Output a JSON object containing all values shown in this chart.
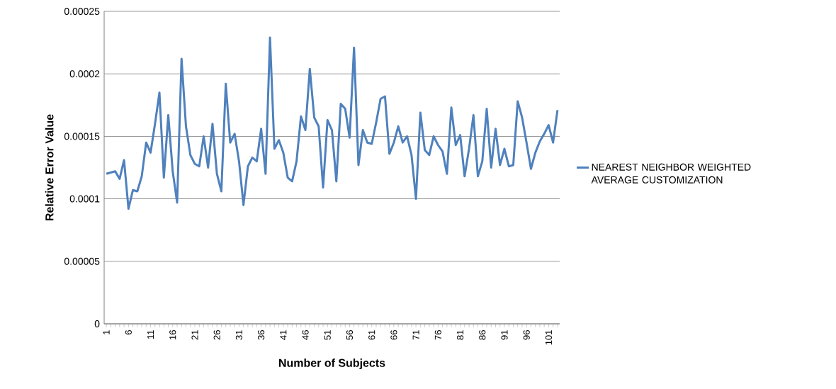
{
  "chart_data": {
    "type": "line",
    "xlabel": "Number of Subjects",
    "ylabel": "Relative Error Value",
    "categories": [
      "1",
      null,
      null,
      null,
      null,
      "6",
      null,
      null,
      null,
      null,
      "11",
      null,
      null,
      null,
      null,
      "16",
      null,
      null,
      null,
      null,
      "21",
      null,
      null,
      null,
      null,
      "26",
      null,
      null,
      null,
      null,
      "31",
      null,
      null,
      null,
      null,
      "36",
      null,
      null,
      null,
      null,
      "41",
      null,
      null,
      null,
      null,
      "46",
      null,
      null,
      null,
      null,
      "51",
      null,
      null,
      null,
      null,
      "56",
      null,
      null,
      null,
      null,
      "61",
      null,
      null,
      null,
      null,
      "66",
      null,
      null,
      null,
      null,
      "71",
      null,
      null,
      null,
      null,
      "76",
      null,
      null,
      null,
      null,
      "81",
      null,
      null,
      null,
      null,
      "86",
      null,
      null,
      null,
      null,
      "91",
      null,
      null,
      null,
      null,
      "96",
      null,
      null,
      null,
      null,
      "101",
      null,
      null
    ],
    "series": [
      {
        "name": "NEAREST NEIGHBOR  WEIGHTED AVERAGE CUSTOMIZATION",
        "color": "#4f81bd",
        "values": [
          0.00012,
          0.000121,
          0.000122,
          0.000116,
          0.000131,
          9.2e-05,
          0.000107,
          0.000106,
          0.000118,
          0.000145,
          0.000137,
          0.00016,
          0.000185,
          0.000117,
          0.000167,
          0.000122,
          9.7e-05,
          0.000212,
          0.000158,
          0.000135,
          0.000128,
          0.000126,
          0.00015,
          0.000125,
          0.00016,
          0.00012,
          0.000106,
          0.000192,
          0.000145,
          0.000152,
          0.00013,
          9.5e-05,
          0.000126,
          0.000133,
          0.00013,
          0.000156,
          0.00012,
          0.000229,
          0.00014,
          0.000147,
          0.000137,
          0.000117,
          0.000114,
          0.00013,
          0.000166,
          0.000155,
          0.000204,
          0.000165,
          0.000158,
          0.000109,
          0.000163,
          0.000155,
          0.000114,
          0.000176,
          0.000172,
          0.000149,
          0.000221,
          0.000127,
          0.000155,
          0.000145,
          0.000144,
          0.000161,
          0.00018,
          0.000182,
          0.000136,
          0.000145,
          0.000158,
          0.000145,
          0.00015,
          0.000135,
          0.0001,
          0.000169,
          0.000139,
          0.000135,
          0.00015,
          0.000143,
          0.000138,
          0.00012,
          0.000173,
          0.000143,
          0.000151,
          0.000118,
          0.00014,
          0.000167,
          0.000118,
          0.00013,
          0.000172,
          0.000125,
          0.000156,
          0.000127,
          0.00014,
          0.000126,
          0.000127,
          0.000178,
          0.000165,
          0.000145,
          0.000124,
          0.000137,
          0.000146,
          0.000152,
          0.000159,
          0.000145,
          0.000171
        ]
      }
    ],
    "ylim": [
      0,
      0.00025
    ],
    "yticks": [
      0,
      {
        "value": 5e-05,
        "label": "0.00005"
      },
      0.0001,
      0.00015,
      0.0002,
      0.00025
    ],
    "grid": "y",
    "legend": "right",
    "marker": "none",
    "line_style": "solid"
  }
}
